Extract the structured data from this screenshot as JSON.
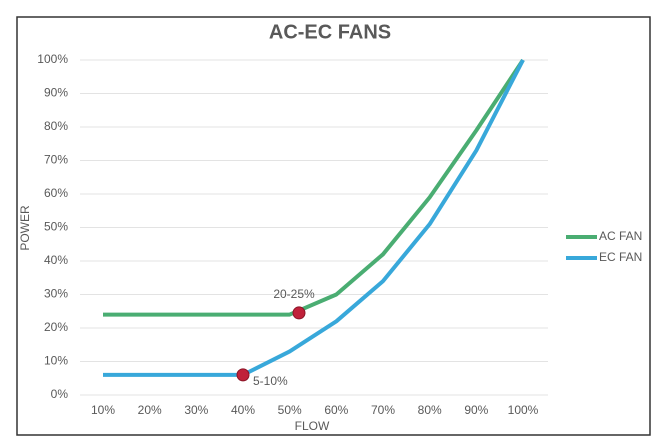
{
  "chart_data": {
    "type": "line",
    "title": "AC-EC FANS",
    "x_label": "FLOW",
    "y_label": "POWER",
    "x": [
      10,
      20,
      30,
      40,
      50,
      60,
      70,
      80,
      90,
      100
    ],
    "series": [
      {
        "name": "AC FAN",
        "color": "#4aad72",
        "values": [
          24,
          24,
          24,
          24,
          24,
          30,
          42,
          59,
          79,
          100
        ]
      },
      {
        "name": "EC FAN",
        "color": "#38a8da",
        "values": [
          6,
          6,
          6,
          6,
          13,
          22,
          34,
          51,
          73,
          100
        ]
      }
    ],
    "annotations": [
      {
        "text": "20-25%",
        "x": 52,
        "y": 24.5,
        "color": "#c0213a"
      },
      {
        "text": "5-10%",
        "x": 40,
        "y": 6,
        "color": "#c0213a"
      }
    ],
    "xlim": [
      10,
      100
    ],
    "xticks": [
      {
        "value": 10,
        "label": "10%"
      },
      {
        "value": 20,
        "label": "20%"
      },
      {
        "value": 30,
        "label": "30%"
      },
      {
        "value": 40,
        "label": "40%"
      },
      {
        "value": 50,
        "label": "50%"
      },
      {
        "value": 60,
        "label": "60%"
      },
      {
        "value": 70,
        "label": "70%"
      },
      {
        "value": 80,
        "label": "80%"
      },
      {
        "value": 90,
        "label": "90%"
      },
      {
        "value": 100,
        "label": "100%"
      }
    ],
    "ylim": [
      0,
      100
    ],
    "yticks": [
      {
        "value": 0,
        "label": "0%"
      },
      {
        "value": 10,
        "label": "10%"
      },
      {
        "value": 20,
        "label": "20%"
      },
      {
        "value": 30,
        "label": "30%"
      },
      {
        "value": 40,
        "label": "40%"
      },
      {
        "value": 50,
        "label": "50%"
      },
      {
        "value": 60,
        "label": "60%"
      },
      {
        "value": 70,
        "label": "70%"
      },
      {
        "value": 80,
        "label": "80%"
      },
      {
        "value": 90,
        "label": "90%"
      },
      {
        "value": 100,
        "label": "100%"
      }
    ],
    "grid": true,
    "legend_position": "right"
  }
}
